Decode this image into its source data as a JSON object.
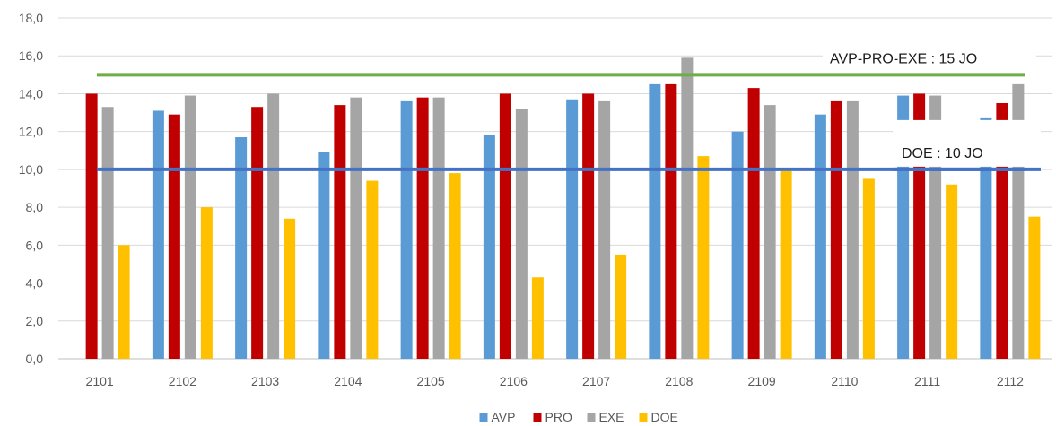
{
  "chart_data": {
    "type": "bar",
    "title": "",
    "xlabel": "",
    "ylabel": "",
    "ylim": [
      0,
      18
    ],
    "ytick_step": 2,
    "ytick_labels": [
      "0,0",
      "2,0",
      "4,0",
      "6,0",
      "8,0",
      "10,0",
      "12,0",
      "14,0",
      "16,0",
      "18,0"
    ],
    "grid": true,
    "legend_position": "bottom",
    "categories": [
      "2101",
      "2102",
      "2103",
      "2104",
      "2105",
      "2106",
      "2107",
      "2108",
      "2109",
      "2110",
      "2111",
      "2112"
    ],
    "series": [
      {
        "name": "AVP",
        "color": "#5B9BD5",
        "values": [
          null,
          13.1,
          11.7,
          10.9,
          13.6,
          11.8,
          13.7,
          14.5,
          12.0,
          12.9,
          13.9,
          12.7
        ]
      },
      {
        "name": "PRO",
        "color": "#C00000",
        "values": [
          14.0,
          12.9,
          13.3,
          13.4,
          13.8,
          14.0,
          14.0,
          14.5,
          14.3,
          13.6,
          14.0,
          13.5
        ]
      },
      {
        "name": "EXE",
        "color": "#A5A5A5",
        "values": [
          13.3,
          13.9,
          14.0,
          13.8,
          13.8,
          13.2,
          13.6,
          15.9,
          13.4,
          13.6,
          13.9,
          14.5
        ]
      },
      {
        "name": "DOE",
        "color": "#FFC000",
        "values": [
          6.0,
          8.0,
          7.4,
          9.4,
          9.8,
          4.3,
          5.5,
          10.7,
          9.9,
          9.5,
          9.2,
          7.5
        ]
      }
    ],
    "reference_lines": [
      {
        "label": "AVP-PRO-EXE : 15 JO",
        "value": 15,
        "color": "#70AD47"
      },
      {
        "label": "DOE : 10 JO",
        "value": 10,
        "color": "#4472C4"
      }
    ]
  }
}
